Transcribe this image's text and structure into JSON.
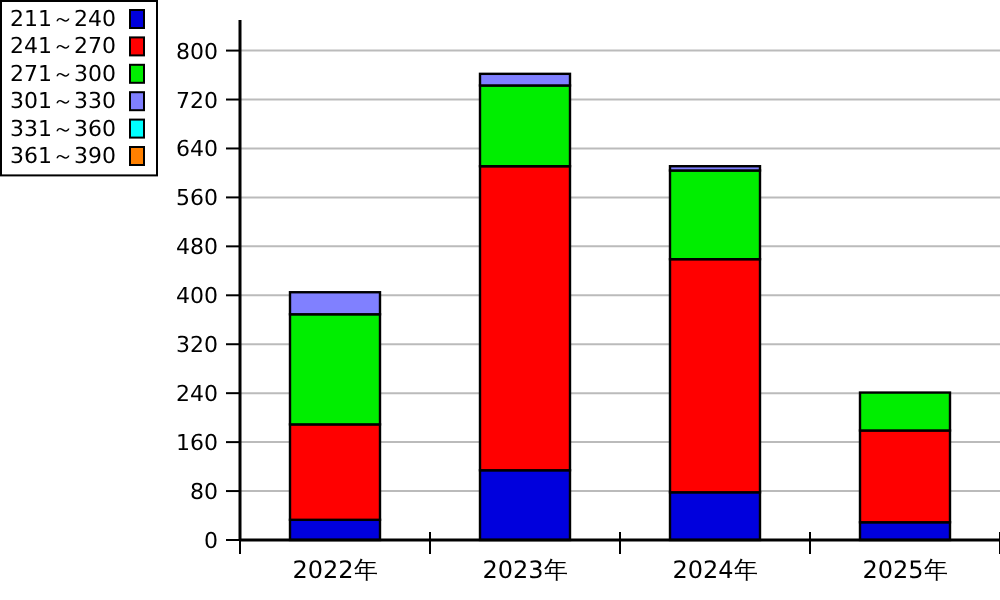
{
  "chart_data": {
    "type": "bar",
    "stacked": true,
    "categories": [
      "2022年",
      "2023年",
      "2024年",
      "2025年"
    ],
    "series": [
      {
        "name": "211～240",
        "color": "#0000dd",
        "values": [
          33,
          114,
          78,
          29
        ]
      },
      {
        "name": "241～270",
        "color": "#ff0000",
        "values": [
          156,
          497,
          381,
          150
        ]
      },
      {
        "name": "271～300",
        "color": "#00ee00",
        "values": [
          180,
          132,
          145,
          62
        ]
      },
      {
        "name": "301～330",
        "color": "#8080ff",
        "values": [
          36,
          19,
          7,
          null
        ]
      },
      {
        "name": "331～360",
        "color": "#00ffff",
        "values": [
          null,
          null,
          null,
          null
        ]
      },
      {
        "name": "361～390",
        "color": "#ff8000",
        "values": [
          0,
          0,
          0,
          0
        ]
      }
    ],
    "ylim": [
      0,
      850
    ],
    "yticks": [
      0,
      80,
      160,
      240,
      320,
      400,
      480,
      560,
      640,
      720,
      800
    ],
    "grid": "y",
    "legend": "top left"
  }
}
